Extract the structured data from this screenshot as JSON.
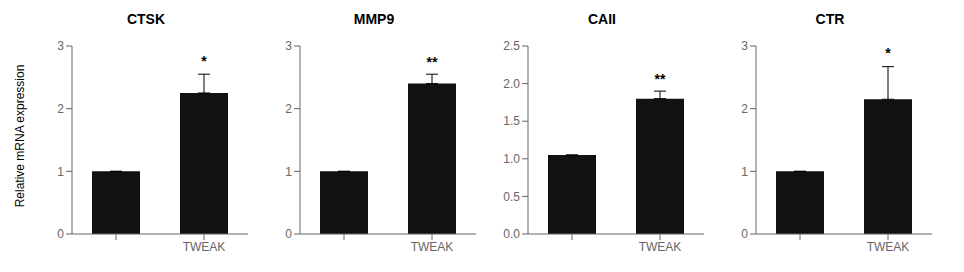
{
  "chart_data": [
    {
      "type": "bar",
      "title": "CTSK",
      "y_label": "Relative mRNA expression",
      "categories": [
        null,
        "TWEAK"
      ],
      "values": [
        1.0,
        2.25
      ],
      "errors": [
        0.0,
        0.3
      ],
      "color": "#111111",
      "ylim": [
        0,
        3
      ],
      "yticks": [
        0,
        1,
        2,
        3
      ],
      "annotations": [
        {
          "text": "*",
          "x": 1,
          "y": 2.6
        }
      ]
    },
    {
      "type": "bar",
      "title": "MMP9",
      "categories": [
        null,
        "TWEAK"
      ],
      "values": [
        1.0,
        2.4
      ],
      "errors": [
        0.0,
        0.15
      ],
      "color": "#111111",
      "ylim": [
        0,
        3
      ],
      "yticks": [
        0,
        1,
        2,
        3
      ],
      "annotations": [
        {
          "text": "**",
          "x": 1,
          "y": 2.58
        }
      ]
    },
    {
      "type": "bar",
      "title": "CAII",
      "categories": [
        null,
        "TWEAK"
      ],
      "values": [
        1.05,
        1.8
      ],
      "errors": [
        0.0,
        0.1
      ],
      "color": "#111111",
      "ylim": [
        0,
        2.5
      ],
      "yticks": [
        {
          "value": 0,
          "label": "0.0"
        },
        0.5,
        {
          "value": 1,
          "label": "1.0"
        },
        1.5,
        {
          "value": 2,
          "label": "2.0"
        },
        2.5
      ],
      "annotations": [
        {
          "text": "**",
          "x": 1,
          "y": 1.93
        }
      ]
    },
    {
      "type": "bar",
      "title": "CTR",
      "categories": [
        null,
        "TWEAK"
      ],
      "values": [
        1.0,
        2.15
      ],
      "errors": [
        0.0,
        0.52
      ],
      "color": "#111111",
      "ylim": [
        0,
        3
      ],
      "yticks": [
        0,
        1,
        2,
        3
      ],
      "annotations": [
        {
          "text": "*",
          "x": 1,
          "y": 2.73
        }
      ]
    }
  ]
}
